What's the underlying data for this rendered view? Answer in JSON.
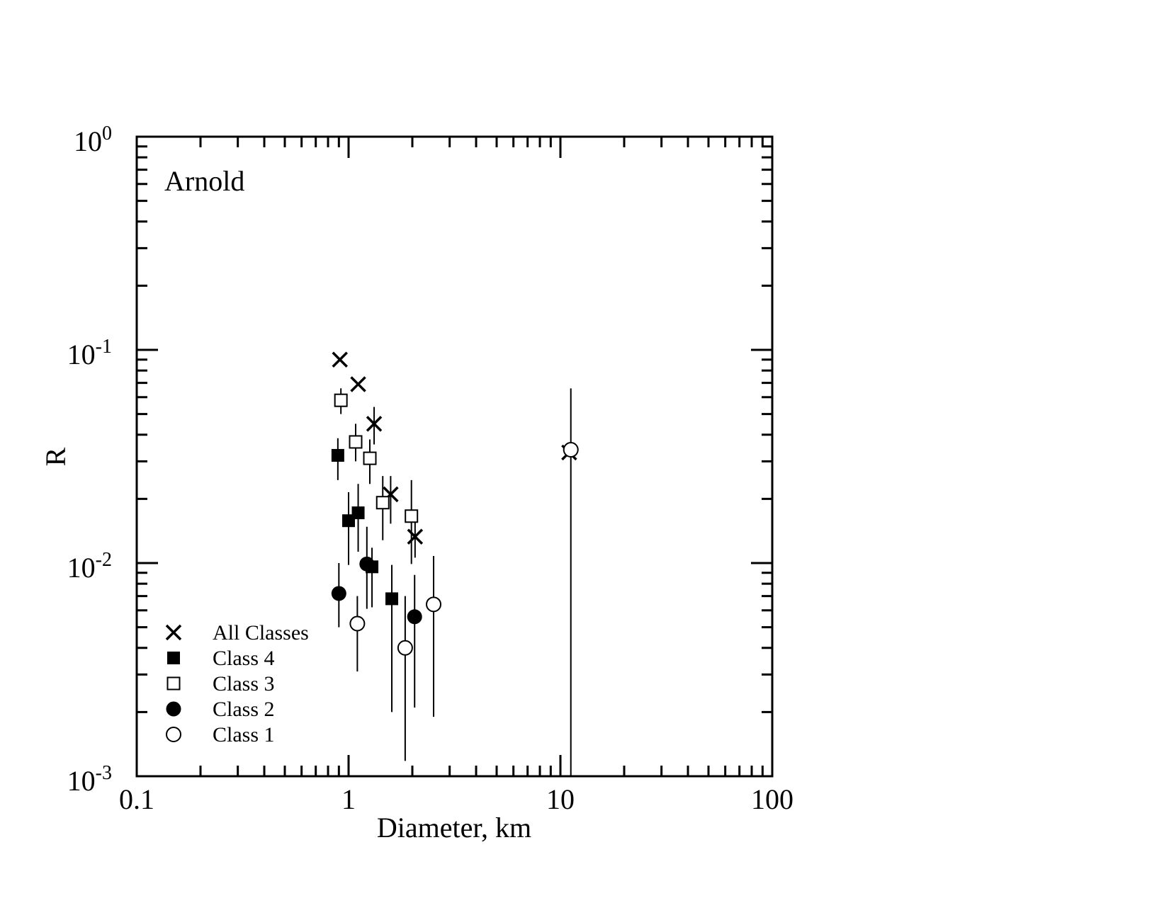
{
  "chart_data": {
    "type": "scatter",
    "title": "Arnold",
    "xlabel": "Diameter, km",
    "ylabel": "R",
    "x_scale": "log",
    "y_scale": "log",
    "xlim": [
      0.1,
      100
    ],
    "ylim": [
      0.001,
      1
    ],
    "x_ticks": [
      {
        "value": 0.1,
        "label": "0.1"
      },
      {
        "value": 1,
        "label": "1"
      },
      {
        "value": 10,
        "label": "10"
      },
      {
        "value": 100,
        "label": "100"
      }
    ],
    "y_ticks": [
      {
        "value": 1,
        "base": "10",
        "exp": "0"
      },
      {
        "value": 0.1,
        "base": "10",
        "exp": "-1"
      },
      {
        "value": 0.01,
        "base": "10",
        "exp": "-2"
      },
      {
        "value": 0.001,
        "base": "10",
        "exp": "-3"
      }
    ],
    "legend_position": "bottom-left",
    "grid": false,
    "series": [
      {
        "name": "All Classes",
        "marker": "x",
        "points": [
          {
            "x": 0.91,
            "y": 0.09,
            "ylo": 0.09,
            "yhi": 0.09
          },
          {
            "x": 1.11,
            "y": 0.069,
            "ylo": 0.069,
            "yhi": 0.069
          },
          {
            "x": 1.32,
            "y": 0.045,
            "ylo": 0.036,
            "yhi": 0.054
          },
          {
            "x": 1.58,
            "y": 0.021,
            "ylo": 0.0153,
            "yhi": 0.0256
          },
          {
            "x": 2.06,
            "y": 0.0133,
            "ylo": 0.0106,
            "yhi": 0.0162
          },
          {
            "x": 11.0,
            "y": 0.033,
            "ylo": 0.033,
            "yhi": 0.033
          }
        ]
      },
      {
        "name": "Class 4",
        "marker": "filled-square",
        "points": [
          {
            "x": 0.89,
            "y": 0.032,
            "ylo": 0.0245,
            "yhi": 0.0385
          },
          {
            "x": 1.0,
            "y": 0.0158,
            "ylo": 0.0098,
            "yhi": 0.0215
          },
          {
            "x": 1.11,
            "y": 0.0172,
            "ylo": 0.0113,
            "yhi": 0.0235
          },
          {
            "x": 1.29,
            "y": 0.0096,
            "ylo": 0.0062,
            "yhi": 0.0118
          },
          {
            "x": 1.6,
            "y": 0.0068,
            "ylo": 0.002,
            "yhi": 0.0098
          }
        ]
      },
      {
        "name": "Class 3",
        "marker": "open-square",
        "points": [
          {
            "x": 0.92,
            "y": 0.058,
            "ylo": 0.05,
            "yhi": 0.066
          },
          {
            "x": 1.08,
            "y": 0.037,
            "ylo": 0.03,
            "yhi": 0.045
          },
          {
            "x": 1.26,
            "y": 0.031,
            "ylo": 0.0235,
            "yhi": 0.038
          },
          {
            "x": 1.45,
            "y": 0.0192,
            "ylo": 0.0128,
            "yhi": 0.0256
          },
          {
            "x": 1.98,
            "y": 0.0166,
            "ylo": 0.0099,
            "yhi": 0.0245
          }
        ]
      },
      {
        "name": "Class 2",
        "marker": "filled-circle",
        "points": [
          {
            "x": 0.9,
            "y": 0.0072,
            "ylo": 0.005,
            "yhi": 0.01
          },
          {
            "x": 1.22,
            "y": 0.0099,
            "ylo": 0.0061,
            "yhi": 0.0148
          },
          {
            "x": 2.05,
            "y": 0.0056,
            "ylo": 0.0021,
            "yhi": 0.0088
          }
        ]
      },
      {
        "name": "Class 1",
        "marker": "open-circle",
        "points": [
          {
            "x": 1.1,
            "y": 0.0052,
            "ylo": 0.0031,
            "yhi": 0.007
          },
          {
            "x": 1.85,
            "y": 0.004,
            "ylo": 0.00118,
            "yhi": 0.007
          },
          {
            "x": 2.52,
            "y": 0.0064,
            "ylo": 0.0019,
            "yhi": 0.0108
          },
          {
            "x": 11.2,
            "y": 0.034,
            "ylo": 0.001,
            "yhi": 0.066
          }
        ]
      }
    ]
  }
}
